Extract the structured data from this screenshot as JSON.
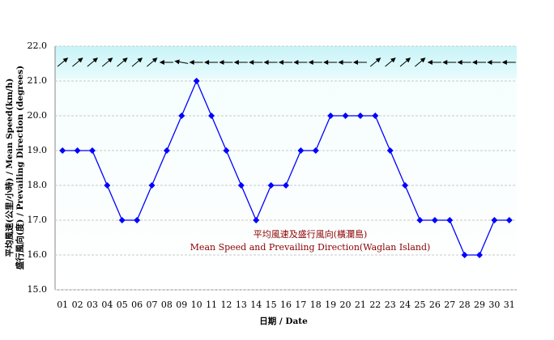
{
  "chart_data": {
    "type": "line",
    "y_label": [
      "平均風速(公里/小時) / Mean Speed(km/h)",
      "盛行風向(度) / Prevailing Direction (degrees)"
    ],
    "x_label": "日期 / Date",
    "annotation": [
      "平均風速及盛行風向(橫瀾島)",
      "Mean Speed and Prevailing Direction(Waglan Island)"
    ],
    "categories": [
      "01",
      "02",
      "03",
      "04",
      "05",
      "06",
      "07",
      "08",
      "09",
      "10",
      "11",
      "12",
      "13",
      "14",
      "15",
      "16",
      "17",
      "18",
      "19",
      "20",
      "21",
      "22",
      "23",
      "24",
      "25",
      "26",
      "27",
      "28",
      "29",
      "30",
      "31"
    ],
    "values": [
      19,
      19,
      19,
      18,
      17,
      17,
      18,
      19,
      20,
      21,
      20,
      19,
      18,
      17,
      18,
      18,
      19,
      19,
      20,
      20,
      20,
      20,
      19,
      18,
      17,
      17,
      17,
      16,
      16,
      17,
      17
    ],
    "directions": [
      230,
      230,
      230,
      230,
      230,
      230,
      230,
      90,
      100,
      90,
      90,
      90,
      90,
      90,
      90,
      90,
      90,
      90,
      90,
      90,
      90,
      230,
      230,
      230,
      230,
      90,
      90,
      90,
      90,
      90,
      90
    ],
    "color": "#0000ff",
    "arrow_color": "#000000",
    "ylim": [
      15,
      22
    ],
    "yticks": [
      {
        "value": 15,
        "label": "15.0"
      },
      {
        "value": 16,
        "label": "16.0"
      },
      {
        "value": 17,
        "label": "17.0"
      },
      {
        "value": 18,
        "label": "18.0"
      },
      {
        "value": 19,
        "label": "19.0"
      },
      {
        "value": 20,
        "label": "20.0"
      },
      {
        "value": 21,
        "label": "21.0"
      },
      {
        "value": 22,
        "label": "22.0"
      }
    ],
    "grid": true
  }
}
